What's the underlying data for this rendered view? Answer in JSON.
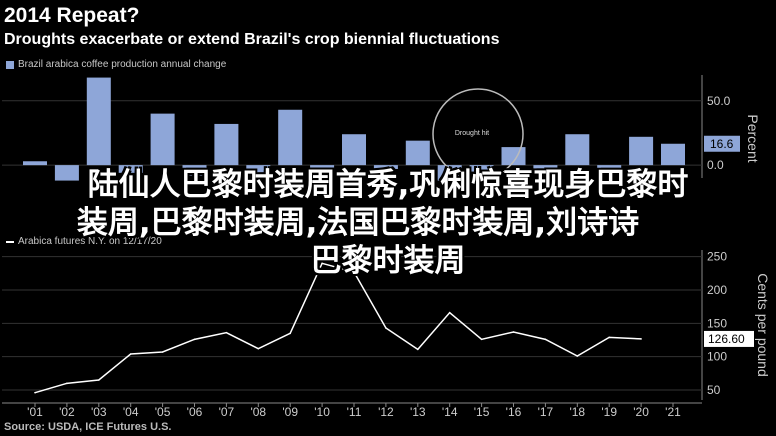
{
  "header": {
    "title": "2014 Repeat?",
    "subtitle": "Droughts exacerbate or extend Brazil's crop biennial fluctuations"
  },
  "annotation": {
    "circle_label": "Drought hit"
  },
  "source": "Source: USDA, ICE Futures U.S.",
  "overlay": {
    "line1": "陆仙人巴黎时装周首秀,巩俐惊喜现身巴黎时",
    "line2": "装周,巴黎时装周,法国巴黎时装周,刘诗诗",
    "line3": "巴黎时装周"
  },
  "colors": {
    "bar": "#8ea6d8",
    "line": "#ffffff",
    "background": "#000000",
    "grid": "#333333"
  },
  "chart_data": [
    {
      "type": "bar",
      "legend": "Brazil arabica coffee production annual change",
      "ylabel": "Percent",
      "ylim": [
        -10,
        70
      ],
      "yticks": [
        50.0,
        0.0
      ],
      "last_value_label": "16.6",
      "categories": [
        "'01",
        "'02",
        "'03",
        "'04",
        "'05",
        "'06",
        "'07",
        "'08",
        "'09",
        "'10",
        "'11",
        "'12",
        "'13",
        "'14",
        "'15",
        "'16",
        "'17",
        "'18",
        "'19",
        "'20",
        "'21"
      ],
      "values": [
        3,
        -12,
        68,
        -6,
        40,
        -8,
        32,
        -10,
        43,
        -6,
        24,
        -3,
        19,
        -12,
        -5,
        14,
        -4,
        24,
        -6,
        22,
        16.6
      ]
    },
    {
      "type": "line",
      "legend": "Arabica futures N.Y. on 12/17/20",
      "ylabel": "Cents per pound",
      "ylim": [
        35,
        260
      ],
      "yticks": [
        250,
        200,
        150,
        100,
        50
      ],
      "last_value_label": "126.60",
      "categories": [
        "'01",
        "'02",
        "'03",
        "'04",
        "'05",
        "'06",
        "'07",
        "'08",
        "'09",
        "'10",
        "'11",
        "'12",
        "'13",
        "'14",
        "'15",
        "'16",
        "'17",
        "'18",
        "'19",
        "'20",
        "'21"
      ],
      "values": [
        46,
        60,
        65,
        104,
        107,
        126,
        136,
        112,
        135,
        240,
        227,
        143,
        111,
        166,
        126,
        137,
        126,
        101,
        129,
        126.6,
        null
      ]
    }
  ]
}
